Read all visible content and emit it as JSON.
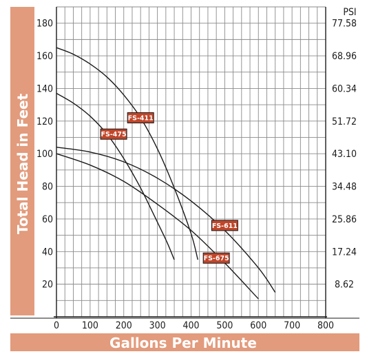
{
  "colors": {
    "band": "#e29b7c",
    "tag": "#c0462a",
    "grid": "#8a8a8a",
    "curve": "#1a1a1a"
  },
  "chart_data": {
    "type": "line",
    "xlabel": "Gallons Per Minute",
    "ylabel": "Total Head in Feet",
    "y2label": "PSI",
    "xlim": [
      0,
      800
    ],
    "ylim": [
      0,
      190
    ],
    "x_ticks": [
      0,
      100,
      200,
      300,
      400,
      500,
      600,
      700,
      800
    ],
    "y_ticks": [
      20,
      40,
      60,
      80,
      100,
      120,
      140,
      160,
      180
    ],
    "y2_ticks": [
      {
        "feet": 20,
        "label": "8.62"
      },
      {
        "feet": 40,
        "label": "17.24"
      },
      {
        "feet": 60,
        "label": "25.86"
      },
      {
        "feet": 80,
        "label": "34.48"
      },
      {
        "feet": 100,
        "label": "43.10"
      },
      {
        "feet": 120,
        "label": "51.72"
      },
      {
        "feet": 140,
        "label": "60.34"
      },
      {
        "feet": 160,
        "label": "68.96"
      },
      {
        "feet": 180,
        "label": "77.58"
      }
    ],
    "grid": true,
    "series": [
      {
        "name": "FS-411",
        "label_at": [
          250,
          122
        ],
        "points": [
          [
            0,
            165
          ],
          [
            50,
            161
          ],
          [
            100,
            155
          ],
          [
            150,
            147
          ],
          [
            200,
            136
          ],
          [
            250,
            122
          ],
          [
            300,
            103
          ],
          [
            350,
            79
          ],
          [
            400,
            51
          ],
          [
            420,
            35
          ]
        ]
      },
      {
        "name": "FS-475",
        "label_at": [
          170,
          112
        ],
        "points": [
          [
            0,
            137
          ],
          [
            50,
            131
          ],
          [
            100,
            123
          ],
          [
            150,
            112
          ],
          [
            200,
            97
          ],
          [
            250,
            79
          ],
          [
            300,
            58
          ],
          [
            330,
            45
          ],
          [
            350,
            35
          ]
        ]
      },
      {
        "name": "FS-611",
        "label_at": [
          500,
          56
        ],
        "points": [
          [
            0,
            104
          ],
          [
            100,
            101
          ],
          [
            200,
            95
          ],
          [
            300,
            85
          ],
          [
            400,
            71
          ],
          [
            500,
            53
          ],
          [
            600,
            30
          ],
          [
            650,
            15
          ]
        ]
      },
      {
        "name": "FS-675",
        "label_at": [
          475,
          36
        ],
        "points": [
          [
            0,
            100
          ],
          [
            100,
            93
          ],
          [
            200,
            83
          ],
          [
            300,
            69
          ],
          [
            400,
            53
          ],
          [
            500,
            33
          ],
          [
            600,
            11
          ]
        ]
      }
    ]
  }
}
